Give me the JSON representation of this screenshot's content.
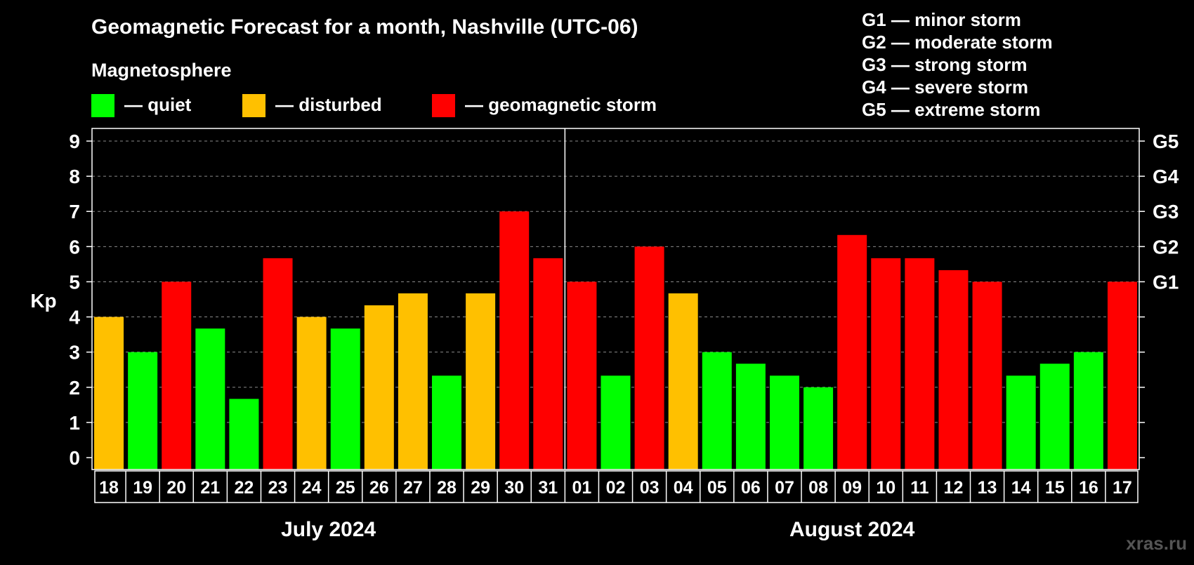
{
  "title": "Geomagnetic Forecast for a month, Nashville (UTC-06)",
  "legend": {
    "heading": "Magnetosphere",
    "items": [
      {
        "color": "#00ff00",
        "label": "— quiet"
      },
      {
        "color": "#ffc000",
        "label": "— disturbed"
      },
      {
        "color": "#ff0000",
        "label": "— geomagnetic storm"
      }
    ]
  },
  "storm_scale": [
    "G1 — minor storm",
    "G2 — moderate storm",
    "G3 — strong storm",
    "G4 — severe storm",
    "G5 — extreme storm"
  ],
  "watermark": "xras.ru",
  "chart_data": {
    "type": "bar",
    "ylabel": "Kp",
    "ylim": [
      0,
      9
    ],
    "yticks": [
      "0",
      "1",
      "2",
      "3",
      "4",
      "5",
      "6",
      "7",
      "8",
      "9"
    ],
    "right_ticks": [
      {
        "value": 5,
        "label": "G1"
      },
      {
        "value": 6,
        "label": "G2"
      },
      {
        "value": 7,
        "label": "G3"
      },
      {
        "value": 8,
        "label": "G4"
      },
      {
        "value": 9,
        "label": "G5"
      }
    ],
    "grid": true,
    "categories": [
      "18",
      "19",
      "20",
      "21",
      "22",
      "23",
      "24",
      "25",
      "26",
      "27",
      "28",
      "29",
      "30",
      "31",
      "01",
      "02",
      "03",
      "04",
      "05",
      "06",
      "07",
      "08",
      "09",
      "10",
      "11",
      "12",
      "13",
      "14",
      "15",
      "16",
      "17"
    ],
    "values": [
      4.0,
      3.0,
      5.0,
      3.67,
      1.67,
      5.67,
      4.0,
      3.67,
      4.33,
      4.67,
      2.33,
      4.67,
      7.0,
      5.67,
      5.0,
      2.33,
      6.0,
      4.67,
      3.0,
      2.67,
      2.33,
      2.0,
      6.33,
      5.67,
      5.67,
      5.33,
      5.0,
      2.33,
      2.67,
      3.0,
      5.0
    ],
    "levels": [
      "disturbed",
      "quiet",
      "storm",
      "quiet",
      "quiet",
      "storm",
      "disturbed",
      "quiet",
      "disturbed",
      "disturbed",
      "quiet",
      "disturbed",
      "storm",
      "storm",
      "storm",
      "quiet",
      "storm",
      "disturbed",
      "quiet",
      "quiet",
      "quiet",
      "quiet",
      "storm",
      "storm",
      "storm",
      "storm",
      "storm",
      "quiet",
      "quiet",
      "quiet",
      "storm"
    ],
    "level_colors": {
      "quiet": "#00ff00",
      "disturbed": "#ffc000",
      "storm": "#ff0000"
    },
    "months": [
      {
        "label": "July 2024",
        "start": 0,
        "count": 14
      },
      {
        "label": "August 2024",
        "start": 14,
        "count": 17
      }
    ]
  }
}
